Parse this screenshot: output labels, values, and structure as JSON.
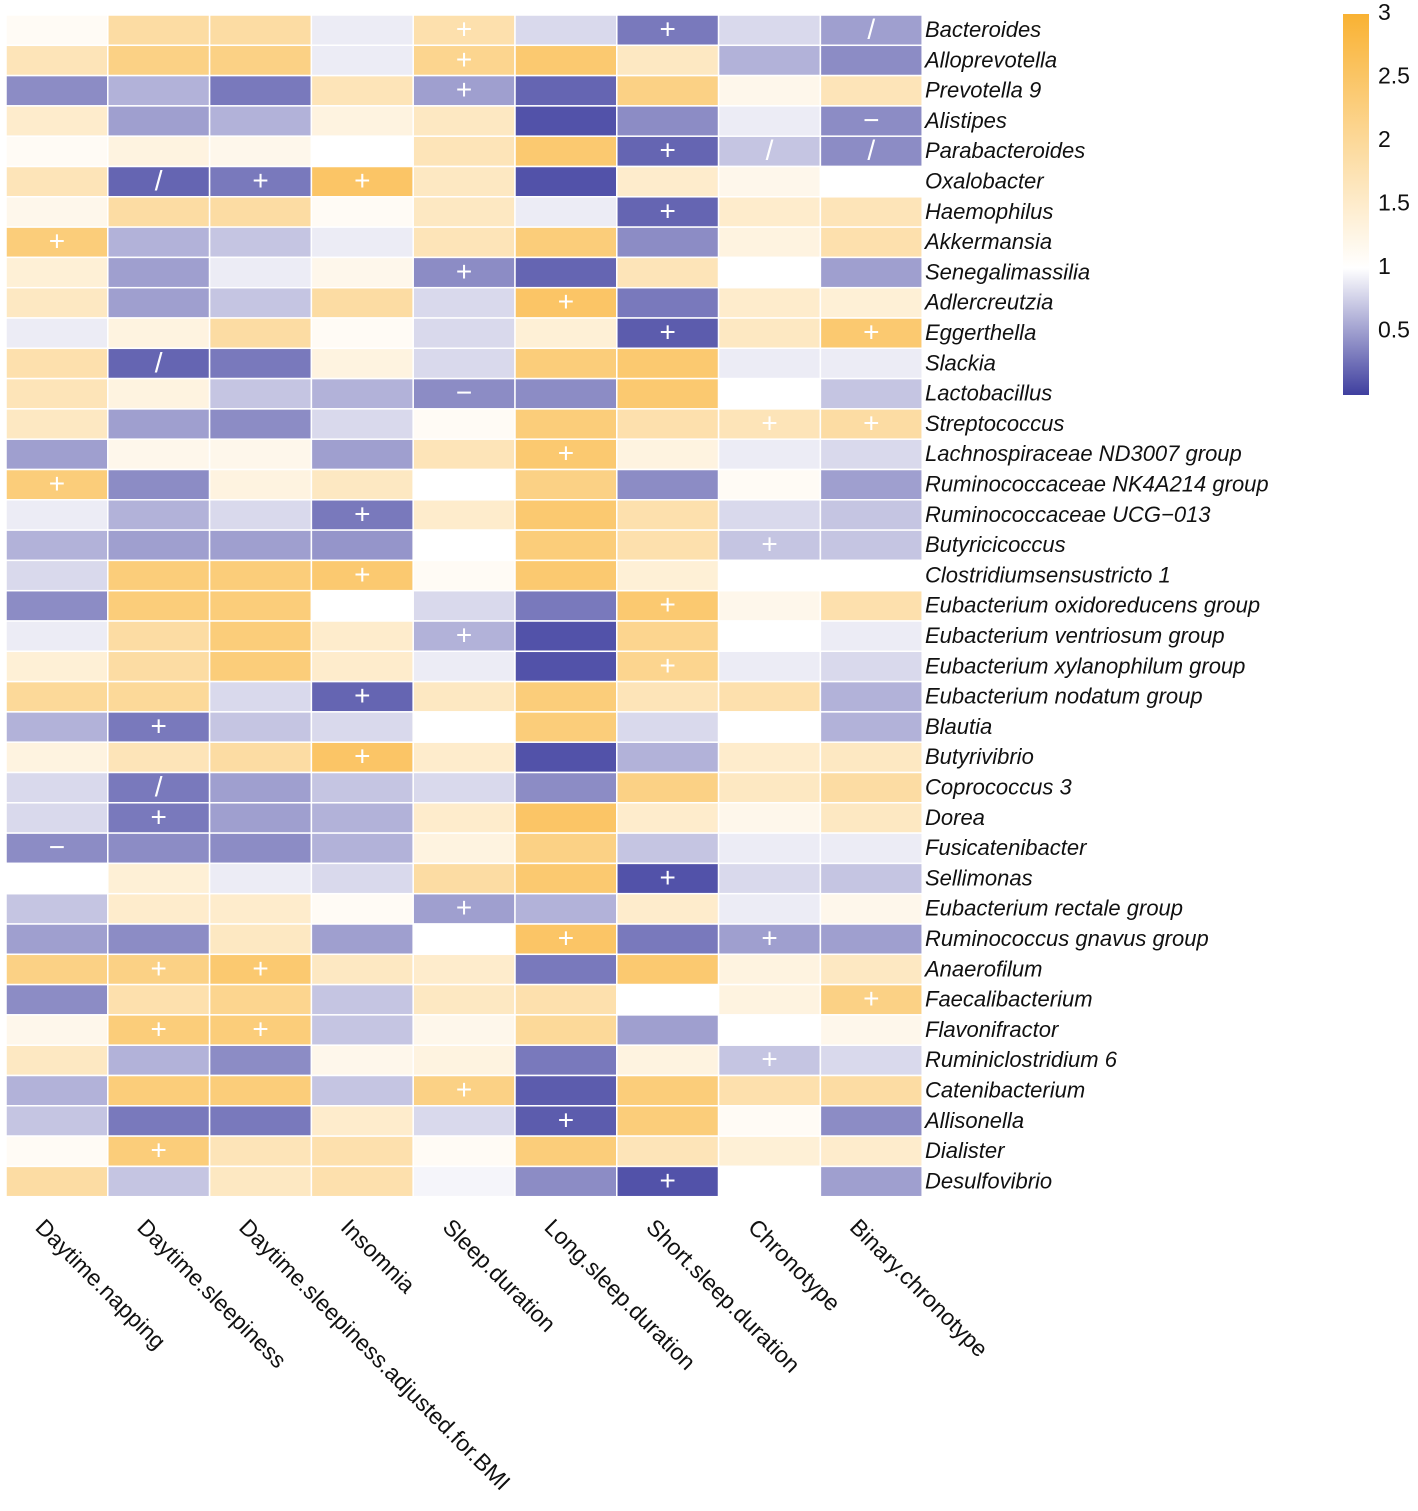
{
  "chart_data": {
    "type": "heatmap",
    "title": "",
    "columns": [
      "Daytime.napping",
      "Daytime.sleepiness",
      "Daytime.sleepiness.adjusted.for.BMI",
      "Insomnia",
      "Sleep.duration",
      "Long.sleep.duration",
      "Short.sleep.duration",
      "Chronotype",
      "Binary.chronotype"
    ],
    "rows": [
      "Bacteroides",
      "Alloprevotella",
      "Prevotella 9",
      "Alistipes",
      "Parabacteroides",
      "Oxalobacter",
      "Haemophilus",
      "Akkermansia",
      "Senegalimassilia",
      "Adlercreutzia",
      "Eggerthella",
      "Slackia",
      "Lactobacillus",
      "Streptococcus",
      "Lachnospiraceae ND3007 group",
      "Ruminococcaceae NK4A214 group",
      "Ruminococcaceae UCG−013",
      "Butyricicoccus",
      "Clostridiumsensustricto 1",
      "Eubacterium oxidoreducens group",
      "Eubacterium ventriosum group",
      "Eubacterium xylanophilum group",
      "Eubacterium nodatum group",
      "Blautia",
      "Butyrivibrio",
      "Coprococcus 3",
      "Dorea",
      "Fusicatenibacter",
      "Sellimonas",
      "Eubacterium rectale group",
      "Ruminococcus gnavus group",
      "Anaerofilum",
      "Faecalibacterium",
      "Flavonifractor",
      "Ruminiclostridium 6",
      "Catenibacterium",
      "Allisonella",
      "Dialister",
      "Desulfovibrio"
    ],
    "values": [
      [
        1.1,
        1.9,
        1.9,
        0.9,
        1.8,
        0.8,
        0.3,
        0.8,
        0.5
      ],
      [
        1.7,
        2.2,
        2.2,
        0.9,
        2.1,
        2.4,
        1.6,
        0.6,
        0.4
      ],
      [
        0.4,
        0.6,
        0.3,
        1.7,
        0.5,
        0.2,
        2.2,
        1.2,
        1.7
      ],
      [
        1.5,
        0.5,
        0.6,
        1.3,
        1.6,
        0.1,
        0.4,
        0.9,
        0.4
      ],
      [
        1.1,
        1.3,
        1.2,
        1.0,
        1.7,
        2.4,
        0.2,
        0.7,
        0.4
      ],
      [
        1.7,
        0.2,
        0.3,
        2.5,
        1.6,
        0.1,
        1.5,
        1.2,
        1.0
      ],
      [
        1.2,
        1.9,
        1.9,
        1.1,
        1.6,
        0.9,
        0.2,
        1.5,
        1.7
      ],
      [
        2.3,
        0.6,
        0.7,
        0.9,
        1.7,
        2.3,
        0.4,
        1.3,
        1.8
      ],
      [
        1.4,
        0.5,
        0.9,
        1.2,
        0.4,
        0.2,
        1.7,
        1.0,
        0.5
      ],
      [
        1.6,
        0.5,
        0.7,
        1.9,
        0.8,
        2.5,
        0.3,
        1.5,
        1.4
      ],
      [
        0.9,
        1.3,
        1.9,
        1.1,
        0.8,
        1.4,
        0.15,
        1.6,
        2.4
      ],
      [
        1.8,
        0.2,
        0.3,
        1.3,
        0.8,
        2.3,
        2.4,
        0.9,
        0.9
      ],
      [
        1.7,
        1.3,
        0.7,
        0.6,
        0.4,
        0.4,
        2.4,
        1.0,
        0.7
      ],
      [
        1.6,
        0.5,
        0.4,
        0.8,
        1.1,
        2.3,
        1.8,
        1.7,
        1.9
      ],
      [
        0.5,
        1.2,
        1.2,
        0.5,
        1.7,
        2.4,
        1.3,
        0.9,
        0.8
      ],
      [
        2.3,
        0.4,
        1.3,
        1.6,
        1.0,
        2.2,
        0.4,
        1.1,
        0.5
      ],
      [
        0.9,
        0.6,
        0.8,
        0.3,
        1.5,
        2.4,
        1.8,
        0.8,
        0.7
      ],
      [
        0.6,
        0.5,
        0.5,
        0.45,
        1.0,
        2.3,
        1.8,
        0.7,
        0.7
      ],
      [
        0.8,
        2.3,
        2.3,
        2.4,
        1.1,
        2.4,
        1.4,
        1.0,
        1.0
      ],
      [
        0.4,
        2.3,
        2.3,
        1.0,
        0.8,
        0.3,
        2.4,
        1.2,
        1.8
      ],
      [
        0.9,
        1.9,
        2.3,
        1.5,
        0.6,
        0.1,
        2.1,
        1.0,
        0.9
      ],
      [
        1.4,
        1.9,
        2.3,
        1.5,
        0.9,
        0.1,
        2.1,
        0.9,
        0.8
      ],
      [
        2.0,
        2.0,
        0.8,
        0.2,
        1.6,
        2.3,
        1.7,
        1.8,
        0.6
      ],
      [
        0.6,
        0.3,
        0.7,
        0.8,
        1.0,
        2.3,
        0.8,
        1.0,
        0.6
      ],
      [
        1.3,
        1.7,
        1.9,
        2.5,
        1.5,
        0.1,
        0.6,
        1.5,
        1.6
      ],
      [
        0.8,
        0.3,
        0.5,
        0.7,
        0.8,
        0.4,
        2.2,
        1.6,
        1.9
      ],
      [
        0.8,
        0.3,
        0.5,
        0.6,
        1.5,
        2.5,
        1.5,
        1.2,
        1.6
      ],
      [
        0.4,
        0.4,
        0.4,
        0.6,
        1.3,
        2.2,
        0.7,
        0.9,
        0.9
      ],
      [
        1.0,
        1.4,
        0.9,
        0.8,
        1.9,
        2.4,
        0.1,
        0.8,
        0.7
      ],
      [
        0.7,
        1.5,
        1.5,
        1.1,
        0.5,
        0.6,
        1.5,
        0.9,
        1.2
      ],
      [
        0.5,
        0.4,
        1.6,
        0.5,
        1.0,
        2.5,
        0.3,
        0.5,
        0.5
      ],
      [
        2.2,
        2.2,
        2.4,
        1.6,
        1.5,
        0.3,
        2.4,
        1.3,
        1.6
      ],
      [
        0.4,
        1.8,
        2.1,
        0.7,
        1.6,
        1.8,
        1.0,
        1.3,
        2.2
      ],
      [
        1.2,
        2.3,
        2.3,
        0.7,
        1.2,
        2.0,
        0.5,
        1.0,
        1.2
      ],
      [
        1.6,
        0.6,
        0.4,
        1.2,
        1.3,
        0.3,
        1.3,
        0.7,
        0.8
      ],
      [
        0.6,
        2.3,
        2.3,
        0.7,
        2.2,
        0.15,
        2.3,
        1.8,
        1.9
      ],
      [
        0.7,
        0.3,
        0.3,
        1.5,
        0.8,
        0.15,
        2.3,
        1.1,
        0.4
      ],
      [
        1.1,
        2.3,
        1.7,
        1.8,
        1.1,
        2.3,
        1.7,
        1.4,
        1.5
      ],
      [
        1.9,
        0.7,
        1.6,
        1.8,
        0.95,
        0.4,
        0.1,
        1.0,
        0.5
      ]
    ],
    "marks": [
      [
        "",
        "",
        "",
        "",
        "+",
        "",
        "+",
        "",
        "/"
      ],
      [
        "",
        "",
        "",
        "",
        "+",
        "",
        "",
        "",
        ""
      ],
      [
        "",
        "",
        "",
        "",
        "+",
        "",
        "",
        "",
        ""
      ],
      [
        "",
        "",
        "",
        "",
        "",
        "",
        "",
        "",
        "−"
      ],
      [
        "",
        "",
        "",
        "",
        "",
        "",
        "+",
        "/",
        "/"
      ],
      [
        "",
        "/",
        "+",
        "+",
        "",
        "",
        "",
        "",
        ""
      ],
      [
        "",
        "",
        "",
        "",
        "",
        "",
        "+",
        "",
        ""
      ],
      [
        "+",
        "",
        "",
        "",
        "",
        "",
        "",
        "",
        ""
      ],
      [
        "",
        "",
        "",
        "",
        "+",
        "",
        "",
        "",
        ""
      ],
      [
        "",
        "",
        "",
        "",
        "",
        "+",
        "",
        "",
        ""
      ],
      [
        "",
        "",
        "",
        "",
        "",
        "",
        "+",
        "",
        "+"
      ],
      [
        "",
        "/",
        "",
        "",
        "",
        "",
        "",
        "",
        ""
      ],
      [
        "",
        "",
        "",
        "",
        "−",
        "",
        "",
        "",
        ""
      ],
      [
        "",
        "",
        "",
        "",
        "",
        "",
        "",
        "+",
        "+"
      ],
      [
        "",
        "",
        "",
        "",
        "",
        "+",
        "",
        "",
        ""
      ],
      [
        "+",
        "",
        "",
        "",
        "",
        "",
        "",
        "",
        ""
      ],
      [
        "",
        "",
        "",
        "+",
        "",
        "",
        "",
        "",
        ""
      ],
      [
        "",
        "",
        "",
        "",
        "",
        "",
        "",
        "+",
        ""
      ],
      [
        "",
        "",
        "",
        "+",
        "",
        "",
        "",
        "",
        ""
      ],
      [
        "",
        "",
        "",
        "",
        "",
        "",
        "+",
        "",
        ""
      ],
      [
        "",
        "",
        "",
        "",
        "+",
        "",
        "",
        "",
        ""
      ],
      [
        "",
        "",
        "",
        "",
        "",
        "",
        "+",
        "",
        ""
      ],
      [
        "",
        "",
        "",
        "+",
        "",
        "",
        "",
        "",
        ""
      ],
      [
        "",
        "+",
        "",
        "",
        "",
        "",
        "",
        "",
        ""
      ],
      [
        "",
        "",
        "",
        "+",
        "",
        "",
        "",
        "",
        ""
      ],
      [
        "",
        "/",
        "",
        "",
        "",
        "",
        "",
        "",
        ""
      ],
      [
        "",
        "+",
        "",
        "",
        "",
        "",
        "",
        "",
        ""
      ],
      [
        "−",
        "",
        "",
        "",
        "",
        "",
        "",
        "",
        ""
      ],
      [
        "",
        "",
        "",
        "",
        "",
        "",
        "+",
        "",
        ""
      ],
      [
        "",
        "",
        "",
        "",
        "+",
        "",
        "",
        "",
        ""
      ],
      [
        "",
        "",
        "",
        "",
        "",
        "+",
        "",
        "+",
        ""
      ],
      [
        "",
        "+",
        "+",
        "",
        "",
        "",
        "",
        "",
        ""
      ],
      [
        "",
        "",
        "",
        "",
        "",
        "",
        "",
        "",
        "+"
      ],
      [
        "",
        "+",
        "+",
        "",
        "",
        "",
        "",
        "",
        ""
      ],
      [
        "",
        "",
        "",
        "",
        "",
        "",
        "",
        "+",
        ""
      ],
      [
        "",
        "",
        "",
        "",
        "+",
        "",
        "",
        "",
        ""
      ],
      [
        "",
        "",
        "",
        "",
        "",
        "+",
        "",
        "",
        ""
      ],
      [
        "",
        "+",
        "",
        "",
        "",
        "",
        "",
        "",
        ""
      ],
      [
        "",
        "",
        "",
        "",
        "",
        "",
        "+",
        "",
        ""
      ]
    ],
    "colorbar": {
      "min": 0,
      "max": 3,
      "ticks": [
        3,
        2.5,
        2,
        1.5,
        1,
        0.5
      ],
      "tick_labels": [
        "3",
        "2.5",
        "2",
        "1.5",
        "1",
        "0.5"
      ],
      "low_color": "#3f3f9f",
      "mid_color": "#ffffff",
      "high_color": "#f9b233"
    }
  }
}
